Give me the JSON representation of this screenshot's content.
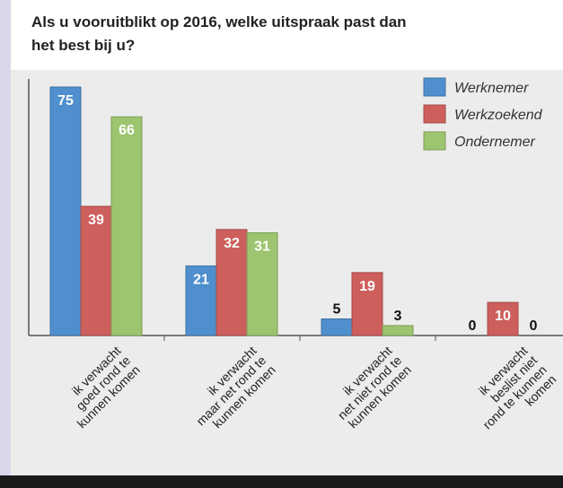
{
  "chart_data": {
    "type": "bar",
    "title": [
      "Als u vooruitblikt op 2016, welke uitspraak past dan",
      "het best bij u?"
    ],
    "categories": [
      [
        "ik verwacht",
        "goed rond te",
        "kunnen komen"
      ],
      [
        "ik verwacht",
        "maar net rond te",
        "kunnen komen"
      ],
      [
        "ik verwacht",
        "net niet rond te",
        "kunnen komen"
      ],
      [
        "ik verwacht",
        "beslist niet",
        "rond te kunnen",
        "komen"
      ]
    ],
    "series": [
      {
        "name": "Werknemer",
        "color": "#4f8fcd",
        "values": [
          75,
          21,
          5,
          0
        ]
      },
      {
        "name": "Werkzoekend",
        "color": "#cd5f5c",
        "values": [
          39,
          32,
          19,
          10
        ]
      },
      {
        "name": "Ondernemer",
        "color": "#9dc46e",
        "values": [
          66,
          31,
          3,
          0
        ]
      }
    ],
    "legend": "top-right"
  }
}
